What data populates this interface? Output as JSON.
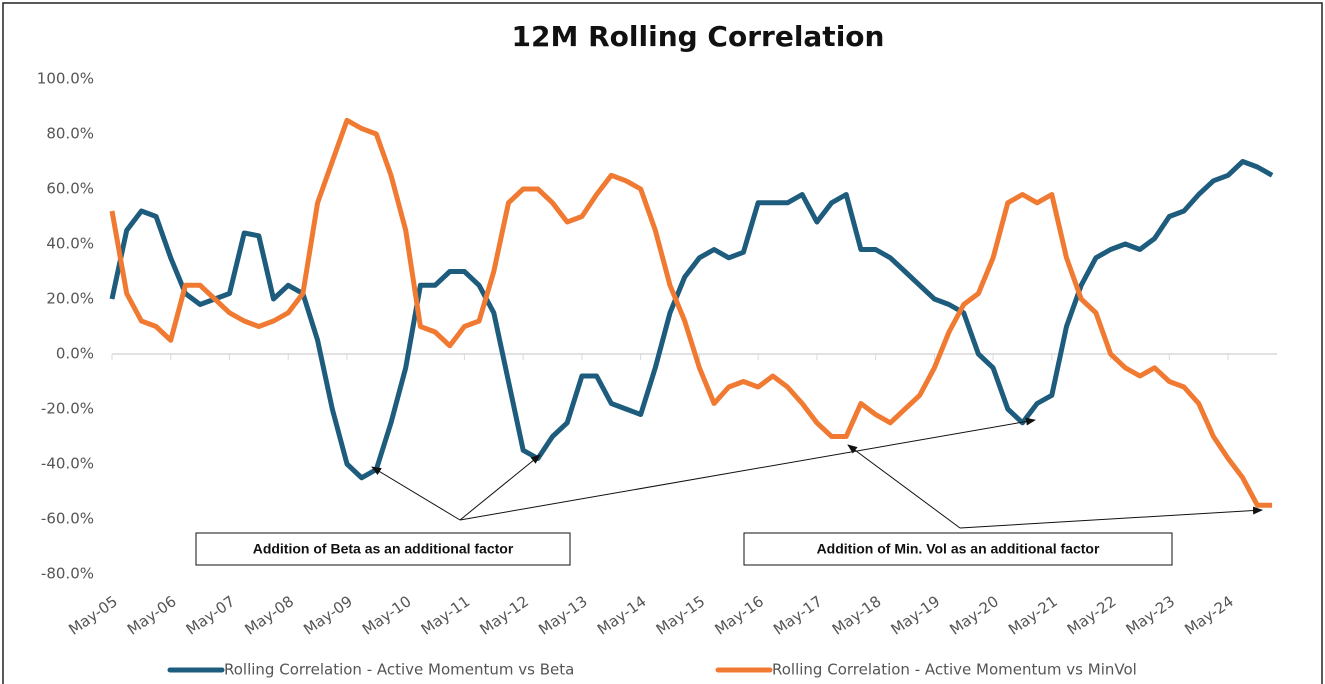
{
  "chart_data": {
    "type": "line",
    "title": "12M Rolling Correlation",
    "x": [
      "2005-05",
      "2005-08",
      "2005-11",
      "2006-02",
      "2006-05",
      "2006-08",
      "2006-11",
      "2007-02",
      "2007-05",
      "2007-08",
      "2007-11",
      "2008-02",
      "2008-05",
      "2008-08",
      "2008-11",
      "2009-02",
      "2009-05",
      "2009-08",
      "2009-11",
      "2010-02",
      "2010-05",
      "2010-08",
      "2010-11",
      "2011-02",
      "2011-05",
      "2011-08",
      "2011-11",
      "2012-02",
      "2012-05",
      "2012-08",
      "2012-11",
      "2013-02",
      "2013-05",
      "2013-08",
      "2013-11",
      "2014-02",
      "2014-05",
      "2014-08",
      "2014-11",
      "2015-02",
      "2015-05",
      "2015-08",
      "2015-11",
      "2016-02",
      "2016-05",
      "2016-08",
      "2016-11",
      "2017-02",
      "2017-05",
      "2017-08",
      "2017-11",
      "2018-02",
      "2018-05",
      "2018-08",
      "2018-11",
      "2019-02",
      "2019-05",
      "2019-08",
      "2019-11",
      "2020-02",
      "2020-05",
      "2020-08",
      "2020-11",
      "2021-02",
      "2021-05",
      "2021-08",
      "2021-11",
      "2022-02",
      "2022-05",
      "2022-08",
      "2022-11",
      "2023-02",
      "2023-05",
      "2023-08",
      "2023-11",
      "2024-02",
      "2024-05",
      "2024-08",
      "2024-11",
      "2025-02"
    ],
    "series": [
      {
        "name": "Rolling Correlation - Active Momentum vs Beta",
        "color": "#1d5c7c",
        "values": [
          20,
          45,
          52,
          50,
          35,
          22,
          18,
          20,
          22,
          44,
          43,
          20,
          25,
          22,
          5,
          -20,
          -40,
          -45,
          -42,
          -25,
          -5,
          25,
          25,
          30,
          30,
          25,
          15,
          -10,
          -35,
          -38,
          -30,
          -25,
          -8,
          -8,
          -18,
          -20,
          -22,
          -5,
          15,
          28,
          35,
          38,
          35,
          37,
          55,
          55,
          55,
          58,
          48,
          55,
          58,
          38,
          38,
          35,
          30,
          25,
          20,
          18,
          15,
          0,
          -5,
          -20,
          -25,
          -18,
          -15,
          10,
          25,
          35,
          38,
          40,
          38,
          42,
          50,
          52,
          58,
          63,
          65,
          70,
          68,
          65
        ]
      },
      {
        "name": "Rolling Correlation - Active Momentum vs MinVol",
        "color": "#f07a32",
        "values": [
          52,
          22,
          12,
          10,
          5,
          25,
          25,
          20,
          15,
          12,
          10,
          12,
          15,
          22,
          55,
          70,
          85,
          82,
          80,
          65,
          45,
          10,
          8,
          3,
          10,
          12,
          30,
          55,
          60,
          60,
          55,
          48,
          50,
          58,
          65,
          63,
          60,
          45,
          25,
          12,
          -5,
          -18,
          -12,
          -10,
          -12,
          -8,
          -12,
          -18,
          -25,
          -30,
          -30,
          -18,
          -22,
          -25,
          -20,
          -15,
          -5,
          8,
          18,
          22,
          35,
          55,
          58,
          55,
          58,
          35,
          20,
          15,
          0,
          -5,
          -8,
          -5,
          -10,
          -12,
          -18,
          -30,
          -38,
          -45,
          -55,
          -55
        ]
      }
    ],
    "xlim": [
      "2005-05",
      "2025-03"
    ],
    "xticks": [
      {
        "value": "2005-05",
        "label": "May-05"
      },
      {
        "value": "2006-05",
        "label": "May-06"
      },
      {
        "value": "2007-05",
        "label": "May-07"
      },
      {
        "value": "2008-05",
        "label": "May-08"
      },
      {
        "value": "2009-05",
        "label": "May-09"
      },
      {
        "value": "2010-05",
        "label": "May-10"
      },
      {
        "value": "2011-05",
        "label": "May-11"
      },
      {
        "value": "2012-05",
        "label": "May-12"
      },
      {
        "value": "2013-05",
        "label": "May-13"
      },
      {
        "value": "2014-05",
        "label": "May-14"
      },
      {
        "value": "2015-05",
        "label": "May-15"
      },
      {
        "value": "2016-05",
        "label": "May-16"
      },
      {
        "value": "2017-05",
        "label": "May-17"
      },
      {
        "value": "2018-05",
        "label": "May-18"
      },
      {
        "value": "2019-05",
        "label": "May-19"
      },
      {
        "value": "2020-05",
        "label": "May-20"
      },
      {
        "value": "2021-05",
        "label": "May-21"
      },
      {
        "value": "2022-05",
        "label": "May-22"
      },
      {
        "value": "2023-05",
        "label": "May-23"
      },
      {
        "value": "2024-05",
        "label": "May-24"
      }
    ],
    "ylim": [
      -80,
      100
    ],
    "yticks": [
      {
        "value": 100,
        "label": "100.0%"
      },
      {
        "value": 80,
        "label": "80.0%"
      },
      {
        "value": 60,
        "label": "60.0%"
      },
      {
        "value": 40,
        "label": "40.0%"
      },
      {
        "value": 20,
        "label": "20.0%"
      },
      {
        "value": 0,
        "label": "0.0%"
      },
      {
        "value": -20,
        "label": "-20.0%"
      },
      {
        "value": -40,
        "label": "-40.0%"
      },
      {
        "value": -60,
        "label": "-60.0%"
      },
      {
        "value": -80,
        "label": "-80.0%"
      }
    ],
    "grid": false,
    "legend": "bottom",
    "annotations": [
      "Addition of Beta as an additional factor",
      "Addition of Min. Vol as an additional factor"
    ]
  }
}
